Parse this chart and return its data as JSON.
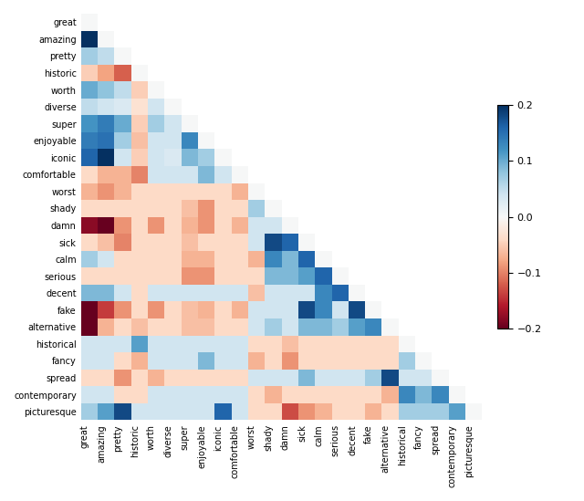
{
  "labels": [
    "great",
    "amazing",
    "pretty",
    "historic",
    "worth",
    "diverse",
    "super",
    "enjoyable",
    "iconic",
    "comfortable",
    "worst",
    "shady",
    "damn",
    "sick",
    "calm",
    "serious",
    "decent",
    "fake",
    "alternative",
    "historical",
    "fancy",
    "spread",
    "contemporary",
    "picturesque"
  ],
  "vmin": -0.2,
  "vmax": 0.2,
  "cmap": "RdBu",
  "matrix": [
    [
      0.0,
      null,
      null,
      null,
      null,
      null,
      null,
      null,
      null,
      null,
      null,
      null,
      null,
      null,
      null,
      null,
      null,
      null,
      null,
      null,
      null,
      null,
      null,
      null
    ],
    [
      0.22,
      0.0,
      null,
      null,
      null,
      null,
      null,
      null,
      null,
      null,
      null,
      null,
      null,
      null,
      null,
      null,
      null,
      null,
      null,
      null,
      null,
      null,
      null,
      null
    ],
    [
      0.07,
      0.05,
      0.0,
      null,
      null,
      null,
      null,
      null,
      null,
      null,
      null,
      null,
      null,
      null,
      null,
      null,
      null,
      null,
      null,
      null,
      null,
      null,
      null,
      null
    ],
    [
      -0.05,
      -0.08,
      -0.12,
      0.0,
      null,
      null,
      null,
      null,
      null,
      null,
      null,
      null,
      null,
      null,
      null,
      null,
      null,
      null,
      null,
      null,
      null,
      null,
      null,
      null
    ],
    [
      0.1,
      0.08,
      0.05,
      -0.05,
      0.0,
      null,
      null,
      null,
      null,
      null,
      null,
      null,
      null,
      null,
      null,
      null,
      null,
      null,
      null,
      null,
      null,
      null,
      null,
      null
    ],
    [
      0.05,
      0.04,
      0.03,
      -0.03,
      0.04,
      0.0,
      null,
      null,
      null,
      null,
      null,
      null,
      null,
      null,
      null,
      null,
      null,
      null,
      null,
      null,
      null,
      null,
      null,
      null
    ],
    [
      0.12,
      0.14,
      0.1,
      -0.05,
      0.07,
      0.04,
      0.0,
      null,
      null,
      null,
      null,
      null,
      null,
      null,
      null,
      null,
      null,
      null,
      null,
      null,
      null,
      null,
      null,
      null
    ],
    [
      0.14,
      0.15,
      0.07,
      -0.06,
      0.04,
      0.04,
      0.13,
      0.0,
      null,
      null,
      null,
      null,
      null,
      null,
      null,
      null,
      null,
      null,
      null,
      null,
      null,
      null,
      null,
      null
    ],
    [
      0.16,
      0.2,
      0.04,
      -0.05,
      0.04,
      0.03,
      0.09,
      0.07,
      0.0,
      null,
      null,
      null,
      null,
      null,
      null,
      null,
      null,
      null,
      null,
      null,
      null,
      null,
      null,
      null
    ],
    [
      -0.04,
      -0.07,
      -0.07,
      -0.1,
      0.04,
      0.04,
      0.04,
      0.09,
      0.04,
      0.0,
      null,
      null,
      null,
      null,
      null,
      null,
      null,
      null,
      null,
      null,
      null,
      null,
      null,
      null
    ],
    [
      -0.07,
      -0.09,
      -0.07,
      -0.04,
      -0.04,
      -0.04,
      -0.04,
      -0.04,
      -0.04,
      -0.07,
      0.0,
      null,
      null,
      null,
      null,
      null,
      null,
      null,
      null,
      null,
      null,
      null,
      null,
      null
    ],
    [
      -0.04,
      -0.04,
      -0.04,
      -0.04,
      -0.04,
      -0.04,
      -0.06,
      -0.09,
      -0.04,
      -0.04,
      0.07,
      0.0,
      null,
      null,
      null,
      null,
      null,
      null,
      null,
      null,
      null,
      null,
      null,
      null
    ],
    [
      -0.18,
      -0.2,
      -0.09,
      -0.04,
      -0.09,
      -0.04,
      -0.07,
      -0.09,
      -0.04,
      -0.07,
      0.04,
      0.04,
      0.0,
      null,
      null,
      null,
      null,
      null,
      null,
      null,
      null,
      null,
      null,
      null
    ],
    [
      -0.04,
      -0.06,
      -0.1,
      -0.04,
      -0.04,
      -0.04,
      -0.06,
      -0.04,
      -0.04,
      -0.04,
      0.04,
      0.18,
      0.16,
      0.0,
      null,
      null,
      null,
      null,
      null,
      null,
      null,
      null,
      null,
      null
    ],
    [
      0.07,
      0.04,
      -0.04,
      -0.04,
      -0.04,
      -0.04,
      -0.07,
      -0.07,
      -0.04,
      -0.04,
      -0.07,
      0.13,
      0.09,
      0.16,
      0.0,
      null,
      null,
      null,
      null,
      null,
      null,
      null,
      null,
      null
    ],
    [
      -0.04,
      -0.04,
      -0.04,
      -0.04,
      -0.04,
      -0.04,
      -0.09,
      -0.09,
      -0.04,
      -0.04,
      -0.04,
      0.09,
      0.09,
      0.11,
      0.16,
      0.0,
      null,
      null,
      null,
      null,
      null,
      null,
      null,
      null
    ],
    [
      0.09,
      0.09,
      0.04,
      -0.04,
      0.04,
      0.04,
      0.04,
      0.04,
      0.04,
      0.04,
      -0.06,
      0.04,
      0.04,
      0.04,
      0.13,
      0.16,
      0.0,
      null,
      null,
      null,
      null,
      null,
      null,
      null
    ],
    [
      -0.2,
      -0.14,
      -0.09,
      -0.04,
      -0.09,
      -0.04,
      -0.06,
      -0.07,
      -0.04,
      -0.07,
      0.04,
      0.04,
      0.04,
      0.18,
      0.13,
      0.04,
      0.18,
      0.0,
      null,
      null,
      null,
      null,
      null,
      null
    ],
    [
      -0.2,
      -0.07,
      -0.04,
      -0.06,
      -0.04,
      -0.04,
      -0.06,
      -0.06,
      -0.04,
      -0.04,
      0.04,
      0.07,
      0.04,
      0.09,
      0.09,
      0.07,
      0.11,
      0.13,
      0.0,
      null,
      null,
      null,
      null,
      null
    ],
    [
      0.04,
      0.04,
      0.04,
      0.11,
      0.04,
      0.04,
      0.04,
      0.04,
      0.04,
      0.04,
      -0.04,
      -0.04,
      -0.06,
      -0.04,
      -0.04,
      -0.04,
      -0.04,
      -0.04,
      -0.04,
      0.0,
      null,
      null,
      null,
      null
    ],
    [
      0.04,
      0.04,
      -0.04,
      -0.07,
      0.04,
      0.04,
      0.04,
      0.09,
      0.04,
      0.04,
      -0.07,
      -0.04,
      -0.09,
      -0.04,
      -0.04,
      -0.04,
      -0.04,
      -0.04,
      -0.04,
      0.07,
      0.0,
      null,
      null,
      null
    ],
    [
      -0.04,
      -0.04,
      -0.09,
      -0.04,
      -0.07,
      -0.04,
      -0.04,
      -0.04,
      -0.04,
      -0.04,
      0.04,
      0.04,
      0.04,
      0.09,
      0.04,
      0.04,
      0.04,
      0.07,
      0.18,
      0.04,
      0.04,
      0.0,
      null,
      null
    ],
    [
      0.04,
      0.04,
      -0.04,
      -0.04,
      0.04,
      0.04,
      0.04,
      0.04,
      0.04,
      0.04,
      -0.04,
      -0.07,
      -0.04,
      -0.04,
      -0.04,
      -0.04,
      -0.04,
      -0.04,
      -0.07,
      0.13,
      0.09,
      0.13,
      0.0,
      null
    ],
    [
      0.07,
      0.11,
      0.18,
      0.04,
      0.04,
      0.04,
      0.04,
      0.04,
      0.16,
      0.04,
      -0.04,
      -0.04,
      -0.13,
      -0.09,
      -0.07,
      -0.04,
      -0.04,
      -0.07,
      -0.04,
      0.07,
      0.07,
      0.07,
      0.11,
      0.0
    ]
  ],
  "figsize": [
    6.4,
    5.49
  ],
  "dpi": 100
}
